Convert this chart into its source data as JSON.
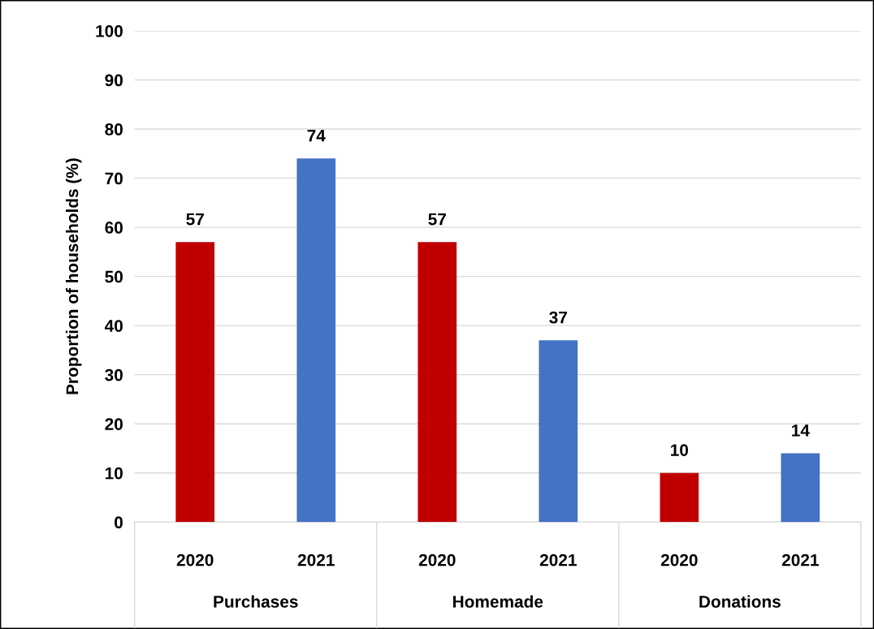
{
  "chart_data": {
    "type": "bar",
    "ylabel": "Proportion of households (%)",
    "categories": [
      "2020",
      "2021",
      "2020",
      "2021",
      "2020",
      "2021"
    ],
    "values": [
      57,
      74,
      57,
      37,
      10,
      14
    ],
    "colors": [
      "#c00000",
      "#4472c4",
      "#c00000",
      "#4472c4",
      "#c00000",
      "#4472c4"
    ],
    "ylim": [
      0,
      100
    ],
    "yticks": [
      0,
      10,
      20,
      30,
      40,
      50,
      60,
      70,
      80,
      90,
      100
    ],
    "grid": "y",
    "data_labels": true,
    "annotations": [
      "Purchases",
      "Homemade",
      "Donations"
    ]
  }
}
